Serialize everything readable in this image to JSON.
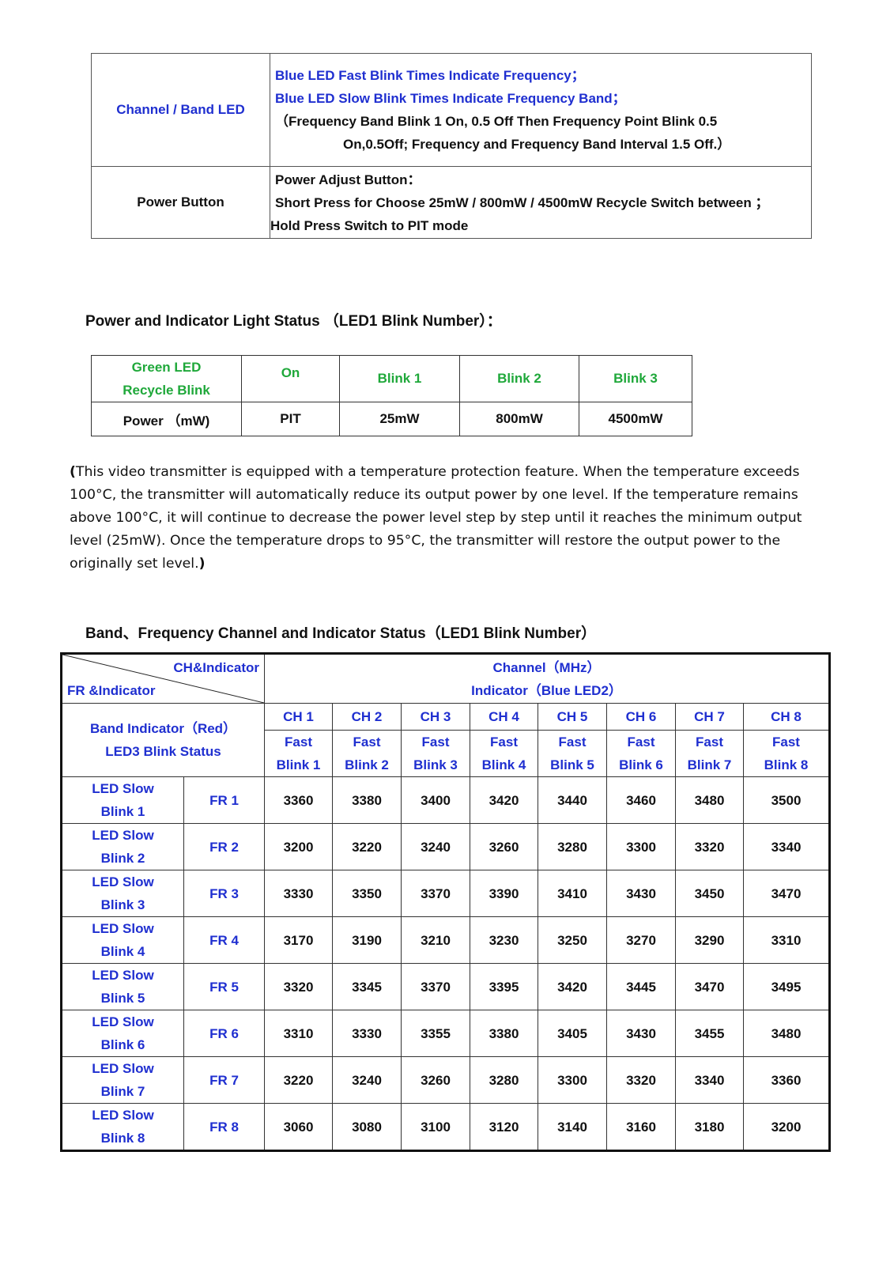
{
  "led_table": {
    "channel_label": "Channel / Band LED",
    "channel_lines": [
      "Blue LED Fast Blink Times Indicate Frequency；",
      "Blue LED Slow Blink Times Indicate Frequency Band；"
    ],
    "channel_note_1": "（Frequency Band Blink 1 On, 0.5 Off Then Frequency Point Blink 0.5",
    "channel_note_2": "On,0.5Off; Frequency and Frequency Band Interval 1.5 Off.）",
    "power_label": "Power Button",
    "power_lines": [
      "Power Adjust Button：",
      "Short Press for Choose 25mW / 800mW / 4500mW Recycle Switch between ；",
      "Hold Press Switch to PIT mode"
    ]
  },
  "power_heading": "Power and Indicator Light Status （LED1 Blink Number）：",
  "power_table": {
    "row1_label": [
      "Green LED",
      "Recycle Blink"
    ],
    "row1": [
      "On",
      "Blink 1",
      "Blink 2",
      "Blink 3"
    ],
    "row2_label": "Power （mW)",
    "row2": [
      "PIT",
      "25mW",
      "800mW",
      "4500mW"
    ]
  },
  "temp_note": {
    "open": "(",
    "text": "This video transmitter is equipped with a temperature protection feature. When the temperature exceeds 100°C, the transmitter will automatically reduce its output power by one level. If the temperature remains above 100°C, it will continue to decrease the power level step by step until it reaches the minimum output level (25mW). Once the temperature drops to 95°C, the transmitter will restore the output power to the originally set level.",
    "close": ")"
  },
  "band_heading": "Band、Frequency Channel and Indicator Status（LED1 Blink Number）",
  "band_table": {
    "corner_top": "CH&Indicator",
    "corner_bottom": "FR &Indicator",
    "channel_header": "Channel（MHz）",
    "indicator_header": "Indicator（Blue LED2）",
    "band_indicator": [
      "Band Indicator（Red）",
      "LED3 Blink Status"
    ],
    "channels": [
      "CH 1",
      "CH 2",
      "CH 3",
      "CH 4",
      "CH 5",
      "CH 6",
      "CH 7",
      "CH 8"
    ],
    "blinks": [
      "Blink 1",
      "Blink 2",
      "Blink 3",
      "Blink 4",
      "Blink 5",
      "Blink 6",
      "Blink 7",
      "Blink 8"
    ],
    "fast_label": "Fast",
    "slow_label": "LED Slow",
    "rows": [
      {
        "blink": "Blink 1",
        "fr": "FR 1",
        "values": [
          3360,
          3380,
          3400,
          3420,
          3440,
          3460,
          3480,
          3500
        ]
      },
      {
        "blink": "Blink 2",
        "fr": "FR 2",
        "values": [
          3200,
          3220,
          3240,
          3260,
          3280,
          3300,
          3320,
          3340
        ]
      },
      {
        "blink": "Blink 3",
        "fr": "FR 3",
        "values": [
          3330,
          3350,
          3370,
          3390,
          3410,
          3430,
          3450,
          3470
        ]
      },
      {
        "blink": "Blink 4",
        "fr": "FR 4",
        "values": [
          3170,
          3190,
          3210,
          3230,
          3250,
          3270,
          3290,
          3310
        ]
      },
      {
        "blink": "Blink 5",
        "fr": "FR 5",
        "values": [
          3320,
          3345,
          3370,
          3395,
          3420,
          3445,
          3470,
          3495
        ]
      },
      {
        "blink": "Blink 6",
        "fr": "FR 6",
        "values": [
          3310,
          3330,
          3355,
          3380,
          3405,
          3430,
          3455,
          3480
        ]
      },
      {
        "blink": "Blink 7",
        "fr": "FR 7",
        "values": [
          3220,
          3240,
          3260,
          3280,
          3300,
          3320,
          3340,
          3360
        ]
      },
      {
        "blink": "Blink 8",
        "fr": "FR 8",
        "values": [
          3060,
          3080,
          3100,
          3120,
          3140,
          3160,
          3180,
          3200
        ]
      }
    ]
  },
  "colors": {
    "blue": "#1f2fd0",
    "green": "#1fa83a"
  }
}
